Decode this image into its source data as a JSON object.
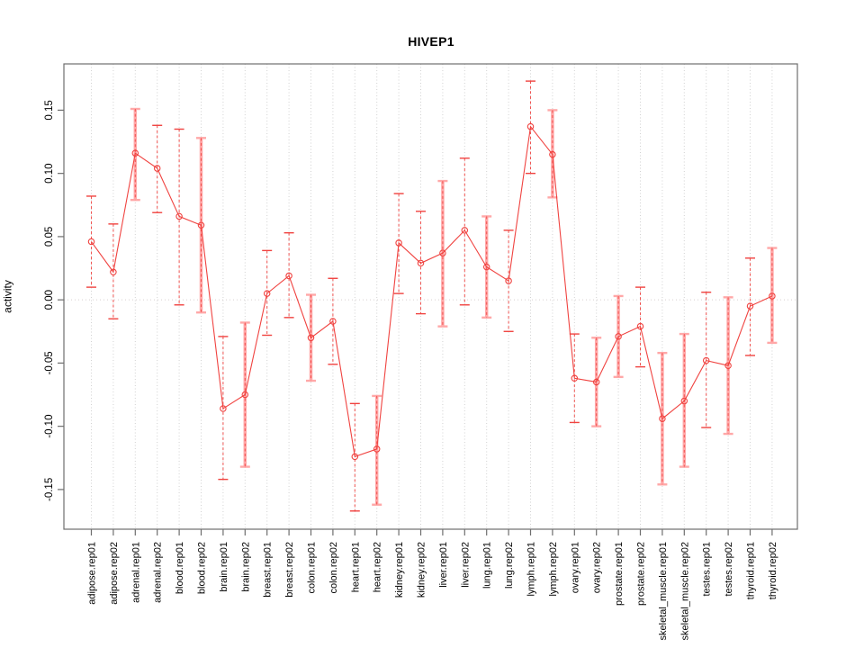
{
  "chart_data": {
    "type": "line",
    "title": "HIVEP1",
    "ylabel": "activity",
    "xlabel": "",
    "ylim": [
      -0.1814,
      0.1866
    ],
    "yticks": [
      0.15,
      0.1,
      0.05,
      0.0,
      -0.05,
      -0.1,
      -0.15
    ],
    "ytick_labels": [
      "0.15",
      "0.10",
      "0.05",
      "0.00",
      "-0.05",
      "-0.10",
      "-0.15"
    ],
    "grid": "dotted vertical gridline at every category; dotted horizontal line at y=0",
    "legend": "none",
    "marker": "open-circle",
    "categories": [
      "adipose.rep01",
      "adipose.rep02",
      "adrenal.rep01",
      "adrenal.rep02",
      "blood.rep01",
      "blood.rep02",
      "brain.rep01",
      "brain.rep02",
      "breast.rep01",
      "breast.rep02",
      "colon.rep01",
      "colon.rep02",
      "heart.rep01",
      "heart.rep02",
      "kidney.rep01",
      "kidney.rep02",
      "liver.rep01",
      "liver.rep02",
      "lung.rep01",
      "lung.rep02",
      "lymph.rep01",
      "lymph.rep02",
      "ovary.rep01",
      "ovary.rep02",
      "prostate.rep01",
      "prostate.rep02",
      "skeletal_muscle.rep01",
      "skeletal_muscle.rep02",
      "testes.rep01",
      "testes.rep02",
      "thyroid.rep01",
      "thyroid.rep02"
    ],
    "series": [
      {
        "name": "activity",
        "values": [
          0.046,
          0.022,
          0.116,
          0.104,
          0.066,
          0.059,
          -0.086,
          -0.075,
          0.005,
          0.019,
          -0.03,
          -0.017,
          -0.124,
          -0.118,
          0.045,
          0.029,
          0.037,
          0.055,
          0.026,
          0.015,
          0.137,
          0.115,
          -0.062,
          -0.065,
          -0.029,
          -0.021,
          -0.094,
          -0.08,
          -0.048,
          -0.052,
          -0.005,
          0.003
        ],
        "lower": [
          0.01,
          -0.015,
          0.079,
          0.069,
          -0.004,
          -0.01,
          -0.142,
          -0.132,
          -0.028,
          -0.014,
          -0.064,
          -0.051,
          -0.167,
          -0.162,
          0.005,
          -0.011,
          -0.021,
          -0.004,
          -0.014,
          -0.025,
          0.1,
          0.081,
          -0.097,
          -0.1,
          -0.061,
          -0.053,
          -0.146,
          -0.132,
          -0.101,
          -0.106,
          -0.044,
          -0.034
        ],
        "upper": [
          0.082,
          0.06,
          0.151,
          0.138,
          0.135,
          0.128,
          -0.029,
          -0.018,
          0.039,
          0.053,
          0.004,
          0.017,
          -0.082,
          -0.076,
          0.084,
          0.07,
          0.094,
          0.112,
          0.066,
          0.055,
          0.173,
          0.15,
          -0.027,
          -0.03,
          0.003,
          0.01,
          -0.042,
          -0.027,
          0.006,
          0.002,
          0.033,
          0.041
        ],
        "thick_band": [
          false,
          false,
          true,
          false,
          false,
          true,
          false,
          true,
          false,
          false,
          true,
          false,
          false,
          true,
          false,
          false,
          true,
          false,
          true,
          false,
          false,
          true,
          false,
          true,
          true,
          false,
          true,
          true,
          false,
          true,
          false,
          true
        ]
      }
    ],
    "colors": {
      "line": "#f04340",
      "marker": "#f04340",
      "error_bar": "#f04340",
      "error_band": "#ffa8a8",
      "grid": "#d2d2d2",
      "zero_line": "#d6cfcf",
      "axis": "#6e6e6e",
      "text": "#000000"
    }
  }
}
